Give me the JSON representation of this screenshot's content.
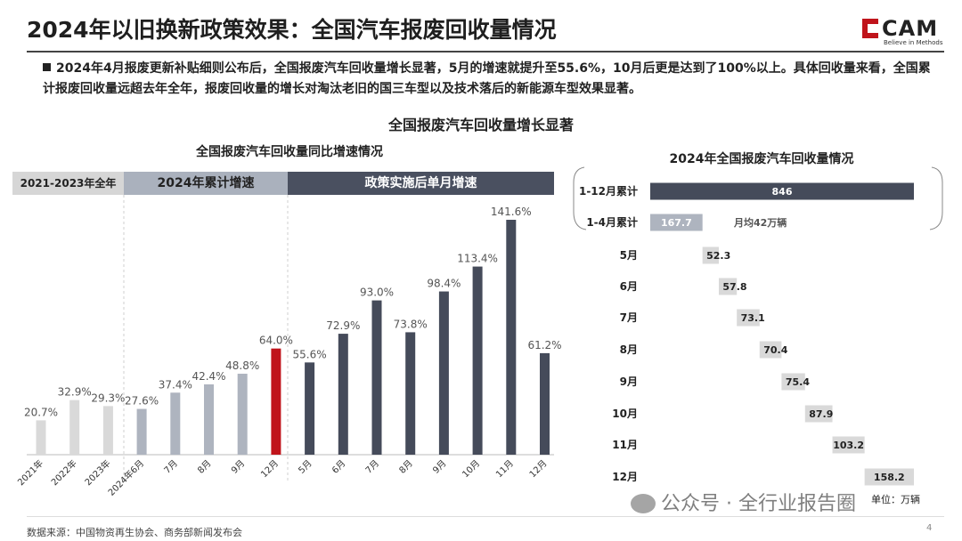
{
  "page": {
    "title": "2024年以旧换新政策效果：全国汽车报废回收量情况",
    "brand": "CAM",
    "brand_sub": "Believe in Methods",
    "summary": "2024年4月报废更新补贴细则公布后，全国报废汽车回收量增长显著，5月的增速就提升至55.6%，10月后更是达到了100%以上。具体回收量来看，全国累计报废回收量远超去年全年，报废回收量的增长对淘汰老旧的国三车型以及技术落后的新能源车型效果显著。",
    "section_heading": "全国报废汽车回收量增长显著",
    "footer_source": "数据来源：中国物资再生协会、商务部新闻发布会",
    "page_number": "4",
    "watermark": "公众号 · 全行业报告圈",
    "colors": {
      "gray_bar": "#d9d9d9",
      "light_bar": "#aeb4bf",
      "red_bar": "#c0141b",
      "dark_bar": "#454b5a"
    }
  },
  "chart_data": [
    {
      "type": "bar",
      "title": "全国报废汽车回收量同比增速情况",
      "band_labels": [
        "2021-2023年全年",
        "2024年累计增速",
        "政策实施后单月增速"
      ],
      "categories": [
        "2021年",
        "2022年",
        "2023年",
        "2024年6月",
        "7月",
        "8月",
        "9月",
        "12月",
        "5月",
        "6月",
        "7月",
        "8月",
        "9月",
        "10月",
        "11月",
        "12月"
      ],
      "values": [
        20.7,
        32.9,
        29.3,
        27.6,
        37.4,
        42.4,
        48.8,
        64.0,
        55.6,
        72.9,
        93.0,
        73.8,
        98.4,
        113.4,
        141.6,
        61.2
      ],
      "value_labels": [
        "20.7%",
        "32.9%",
        "29.3%",
        "27.6%",
        "37.4%",
        "42.4%",
        "48.8%",
        "64.0%",
        "55.6%",
        "72.9%",
        "93.0%",
        "73.8%",
        "98.4%",
        "113.4%",
        "141.6%",
        "61.2%"
      ],
      "groups": [
        "annual",
        "annual",
        "annual",
        "cum",
        "cum",
        "cum",
        "cum",
        "highlight",
        "monthly",
        "monthly",
        "monthly",
        "monthly",
        "monthly",
        "monthly",
        "monthly",
        "monthly"
      ],
      "ylim": [
        0,
        150
      ],
      "grid": false
    },
    {
      "type": "bar",
      "orientation": "horizontal-waterfall",
      "title": "2024年全国报废汽车回收量情况",
      "categories": [
        "1-12月累计",
        "1-4月累计",
        "5月",
        "6月",
        "7月",
        "8月",
        "9月",
        "10月",
        "11月",
        "12月"
      ],
      "values": [
        846,
        167.7,
        52.3,
        57.8,
        73.1,
        70.4,
        75.4,
        87.9,
        103.2,
        158.2
      ],
      "value_labels": [
        "846",
        "167.7",
        "52.3",
        "57.8",
        "73.1",
        "70.4",
        "75.4",
        "87.9",
        "103.2",
        "158.2"
      ],
      "annotation": "月均42万辆",
      "unit": "单位：万辆",
      "xlim": [
        0,
        846
      ]
    }
  ]
}
